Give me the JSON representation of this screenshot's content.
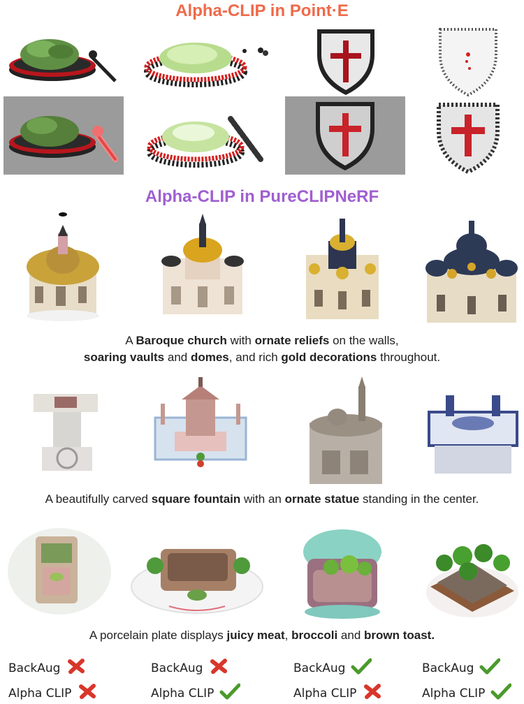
{
  "titles": {
    "pointe": "Alpha-CLIP in Point·E",
    "pureclipnerf": "Alpha-CLIP in PureCLIPNeRF"
  },
  "captions": {
    "church": [
      {
        "t": "A "
      },
      {
        "b": "Baroque church"
      },
      {
        "t": " with "
      },
      {
        "b": "ornate reliefs"
      },
      {
        "t": " on the walls,"
      },
      {
        "br": true
      },
      {
        "b": "soaring vaults"
      },
      {
        "t": " and "
      },
      {
        "b": "domes"
      },
      {
        "t": ", and rich "
      },
      {
        "b": "gold decorations"
      },
      {
        "t": " throughout."
      }
    ],
    "fountain": [
      {
        "t": "A beautifully carved "
      },
      {
        "b": "square fountain"
      },
      {
        "t": " with an "
      },
      {
        "b": "ornate statue"
      },
      {
        "t": " standing in the center."
      }
    ],
    "plate": [
      {
        "t": "A porcelain plate displays "
      },
      {
        "b": "juicy meat"
      },
      {
        "t": ", "
      },
      {
        "b": "broccoli"
      },
      {
        "t": " and "
      },
      {
        "b": "brown toast."
      }
    ]
  },
  "legend": {
    "backaug_label": "BackAug",
    "alphaclip_label": "Alpha CLIP",
    "columns": [
      {
        "backaug": "cross",
        "alphaclip": "cross"
      },
      {
        "backaug": "cross",
        "alphaclip": "check"
      },
      {
        "backaug": "check",
        "alphaclip": "cross"
      },
      {
        "backaug": "check",
        "alphaclip": "check"
      }
    ]
  },
  "colors": {
    "pointe_title": "#ef6a4a",
    "pureclip_title": "#a05fd0",
    "cross": "#d9362b",
    "check": "#4a9a2a"
  }
}
